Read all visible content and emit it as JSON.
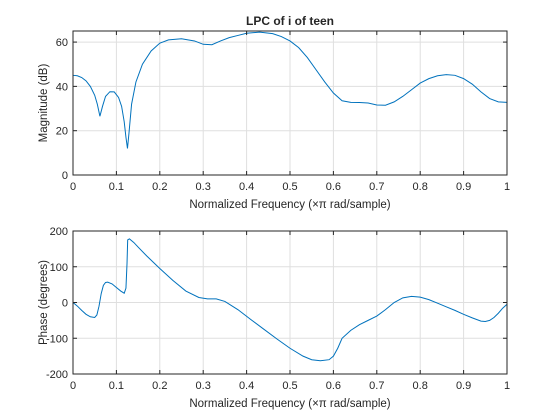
{
  "colors": {
    "series": "#0072bd",
    "grid": "#dfdfdf",
    "axis": "#262626"
  },
  "chart_data": [
    {
      "type": "line",
      "title": "LPC of i of teen",
      "xlabel": "Normalized Frequency  (×π rad/sample)",
      "ylabel": "Magnitude (dB)",
      "xlim": [
        0,
        1
      ],
      "ylim": [
        0,
        65
      ],
      "xticks": [
        0,
        0.1,
        0.2,
        0.3,
        0.4,
        0.5,
        0.6,
        0.7,
        0.8,
        0.9,
        1
      ],
      "xtick_labels": [
        "0",
        "0.1",
        "0.2",
        "0.3",
        "0.4",
        "0.5",
        "0.6",
        "0.7",
        "0.8",
        "0.9",
        "1"
      ],
      "yticks": [
        0,
        20,
        40,
        60
      ],
      "ytick_labels": [
        "0",
        "20",
        "40",
        "60"
      ],
      "grid": true,
      "x": [
        0,
        0.01,
        0.02,
        0.03,
        0.04,
        0.05,
        0.056,
        0.062,
        0.068,
        0.075,
        0.085,
        0.095,
        0.105,
        0.112,
        0.118,
        0.122,
        0.1255,
        0.129,
        0.135,
        0.145,
        0.16,
        0.18,
        0.2,
        0.22,
        0.25,
        0.28,
        0.3,
        0.32,
        0.34,
        0.36,
        0.38,
        0.4,
        0.43,
        0.46,
        0.48,
        0.5,
        0.52,
        0.54,
        0.56,
        0.58,
        0.6,
        0.62,
        0.64,
        0.66,
        0.68,
        0.7,
        0.72,
        0.74,
        0.76,
        0.78,
        0.8,
        0.82,
        0.84,
        0.86,
        0.88,
        0.9,
        0.92,
        0.94,
        0.96,
        0.98,
        1.0
      ],
      "series": [
        {
          "values": [
            45,
            44.8,
            44,
            42.5,
            40,
            36,
            32,
            26.5,
            31,
            35.5,
            37.6,
            37.5,
            35,
            31,
            24,
            17,
            12,
            19,
            32,
            42,
            50,
            56,
            59.5,
            61,
            61.5,
            60.5,
            59,
            58.8,
            60.5,
            62,
            63,
            64,
            64.5,
            63.8,
            62.5,
            60.5,
            57.5,
            53,
            47.5,
            42,
            37,
            33.5,
            32.8,
            32.7,
            32.5,
            31.6,
            31.5,
            33,
            35.5,
            38.5,
            41.5,
            43.5,
            44.8,
            45.3,
            45,
            43.5,
            41,
            37.5,
            34.5,
            33,
            32.8
          ]
        }
      ]
    },
    {
      "type": "line",
      "title": "",
      "xlabel": "Normalized Frequency  (×π rad/sample)",
      "ylabel": "Phase (degrees)",
      "xlim": [
        0,
        1
      ],
      "ylim": [
        -200,
        200
      ],
      "xticks": [
        0,
        0.1,
        0.2,
        0.3,
        0.4,
        0.5,
        0.6,
        0.7,
        0.8,
        0.9,
        1
      ],
      "xtick_labels": [
        "0",
        "0.1",
        "0.2",
        "0.3",
        "0.4",
        "0.5",
        "0.6",
        "0.7",
        "0.8",
        "0.9",
        "1"
      ],
      "yticks": [
        -200,
        -100,
        0,
        100,
        200
      ],
      "ytick_labels": [
        "-200",
        "-100",
        "0",
        "100",
        "200"
      ],
      "grid": true,
      "x": [
        0,
        0.01,
        0.02,
        0.03,
        0.04,
        0.05,
        0.055,
        0.06,
        0.065,
        0.07,
        0.075,
        0.08,
        0.09,
        0.1,
        0.11,
        0.118,
        0.122,
        0.1245,
        0.126,
        0.13,
        0.14,
        0.15,
        0.17,
        0.2,
        0.23,
        0.26,
        0.29,
        0.31,
        0.33,
        0.35,
        0.38,
        0.41,
        0.44,
        0.47,
        0.5,
        0.53,
        0.55,
        0.57,
        0.59,
        0.6,
        0.61,
        0.62,
        0.64,
        0.66,
        0.68,
        0.7,
        0.72,
        0.74,
        0.76,
        0.78,
        0.8,
        0.82,
        0.84,
        0.86,
        0.88,
        0.9,
        0.92,
        0.94,
        0.95,
        0.96,
        0.97,
        0.98,
        0.99,
        1.0
      ],
      "series": [
        {
          "values": [
            0,
            -10,
            -22,
            -33,
            -40,
            -42,
            -35,
            -10,
            25,
            48,
            56,
            57,
            52,
            42,
            32,
            26,
            40,
            110,
            175,
            178,
            168,
            155,
            130,
            95,
            62,
            32,
            14,
            10,
            10,
            3,
            -20,
            -48,
            -75,
            -102,
            -128,
            -150,
            -160,
            -163,
            -160,
            -150,
            -128,
            -100,
            -78,
            -62,
            -50,
            -38,
            -20,
            0,
            13,
            17,
            15,
            8,
            -2,
            -12,
            -22,
            -33,
            -43,
            -52,
            -53,
            -50,
            -42,
            -30,
            -16,
            -5
          ]
        }
      ]
    }
  ]
}
